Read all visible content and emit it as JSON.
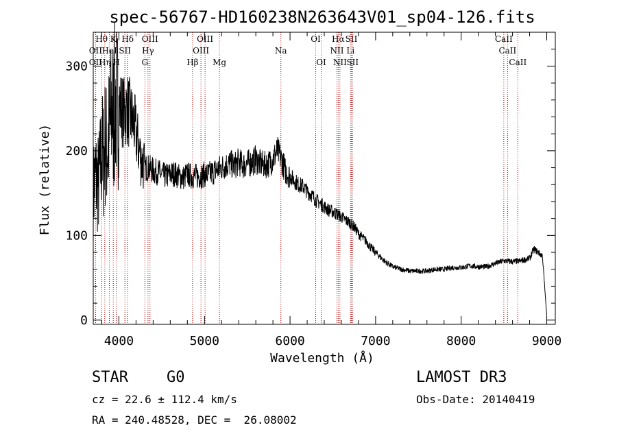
{
  "chart_data": {
    "type": "line",
    "title": "spec-56767-HD160238N263643V01_sp04-126.fits",
    "xlabel": "Wavelength (Å)",
    "ylabel": "Flux (relative)",
    "xlim": [
      3700,
      9100
    ],
    "ylim": [
      -5,
      340
    ],
    "x_ticks": [
      4000,
      5000,
      6000,
      7000,
      8000,
      9000
    ],
    "y_ticks": [
      0,
      100,
      200,
      300
    ],
    "grid": false,
    "legend": "none",
    "line_color": "#000000",
    "marker_color": "#aa0000",
    "series": [
      {
        "x": [
          3700,
          3720,
          3740,
          3760,
          3780,
          3800,
          3820,
          3840,
          3860,
          3880,
          3900,
          3920,
          3940,
          3960,
          3980,
          4000,
          4030,
          4060,
          4100,
          4140,
          4180,
          4220,
          4260,
          4300,
          4340,
          4380,
          4420,
          4460,
          4500,
          4550,
          4600,
          4650,
          4700,
          4750,
          4800,
          4850,
          4900,
          4950,
          5000,
          5050,
          5100,
          5150,
          5200,
          5250,
          5300,
          5350,
          5400,
          5450,
          5500,
          5550,
          5600,
          5650,
          5700,
          5750,
          5800,
          5850,
          5900,
          5950,
          6000,
          6050,
          6100,
          6150,
          6200,
          6250,
          6300,
          6350,
          6400,
          6450,
          6500,
          6550,
          6600,
          6650,
          6700,
          6750,
          6800,
          6850,
          6900,
          6950,
          7000,
          7100,
          7200,
          7300,
          7400,
          7500,
          7600,
          7700,
          7800,
          7900,
          8000,
          8100,
          8200,
          8300,
          8400,
          8500,
          8600,
          8700,
          8800,
          8850,
          8900,
          8950,
          9000
        ],
        "y": [
          150,
          170,
          165,
          160,
          175,
          200,
          190,
          210,
          200,
          215,
          230,
          250,
          240,
          260,
          250,
          255,
          250,
          245,
          250,
          240,
          230,
          210,
          190,
          180,
          180,
          178,
          175,
          175,
          172,
          170,
          172,
          173,
          170,
          168,
          172,
          170,
          170,
          170,
          172,
          172,
          175,
          178,
          180,
          183,
          185,
          182,
          187,
          183,
          185,
          186,
          190,
          185,
          183,
          185,
          190,
          200,
          190,
          175,
          170,
          165,
          160,
          158,
          152,
          148,
          142,
          138,
          134,
          130,
          128,
          125,
          122,
          118,
          115,
          110,
          102,
          97,
          92,
          85,
          80,
          70,
          63,
          60,
          58,
          58,
          58,
          60,
          60,
          62,
          62,
          64,
          63,
          63,
          67,
          70,
          69,
          70,
          73,
          84,
          80,
          76,
          5
        ]
      }
    ],
    "line_markers": [
      {
        "x": 3727,
        "label": "OII",
        "row": 2
      },
      {
        "x": 3727,
        "label": "OII",
        "row": 3
      },
      {
        "x": 3798,
        "label": "Hθ",
        "row": 1
      },
      {
        "x": 3835,
        "label": "Hη",
        "row": 3
      },
      {
        "x": 3889,
        "label": "HeI",
        "row": 2
      },
      {
        "x": 3934,
        "label": "K",
        "row": 1
      },
      {
        "x": 3969,
        "label": "H",
        "row": 3
      },
      {
        "x": 4070,
        "label": "SII",
        "row": 2
      },
      {
        "x": 4102,
        "label": "Hδ",
        "row": 1
      },
      {
        "x": 4304,
        "label": "G",
        "row": 3
      },
      {
        "x": 4340,
        "label": "Hγ",
        "row": 2
      },
      {
        "x": 4363,
        "label": "OIII",
        "row": 1
      },
      {
        "x": 4861,
        "label": "Hβ",
        "row": 3
      },
      {
        "x": 4959,
        "label": "OIII",
        "row": 2
      },
      {
        "x": 5007,
        "label": "OIII",
        "row": 1
      },
      {
        "x": 5175,
        "label": "Mg",
        "row": 3
      },
      {
        "x": 5893,
        "label": "Na",
        "row": 2
      },
      {
        "x": 6300,
        "label": "OI",
        "row": 1
      },
      {
        "x": 6364,
        "label": "OI",
        "row": 3
      },
      {
        "x": 6548,
        "label": "NII",
        "row": 2
      },
      {
        "x": 6563,
        "label": "Hα",
        "row": 1
      },
      {
        "x": 6583,
        "label": "NII",
        "row": 3
      },
      {
        "x": 6707,
        "label": "Li",
        "row": 2
      },
      {
        "x": 6717,
        "label": "SII",
        "row": 1
      },
      {
        "x": 6731,
        "label": "SII",
        "row": 3
      },
      {
        "x": 8498,
        "label": "CaII",
        "row": 1
      },
      {
        "x": 8542,
        "label": "CaII",
        "row": 2
      },
      {
        "x": 8662,
        "label": "CaII",
        "row": 3
      }
    ]
  },
  "info": {
    "class_label": "STAR",
    "subclass": "G0",
    "survey": "LAMOST DR3",
    "redshift_line": "cz = 22.6 ± 112.4 km/s",
    "obs_date": "Obs-Date: 20140419",
    "coords": "RA = 240.48528, DEC =  26.08002"
  }
}
